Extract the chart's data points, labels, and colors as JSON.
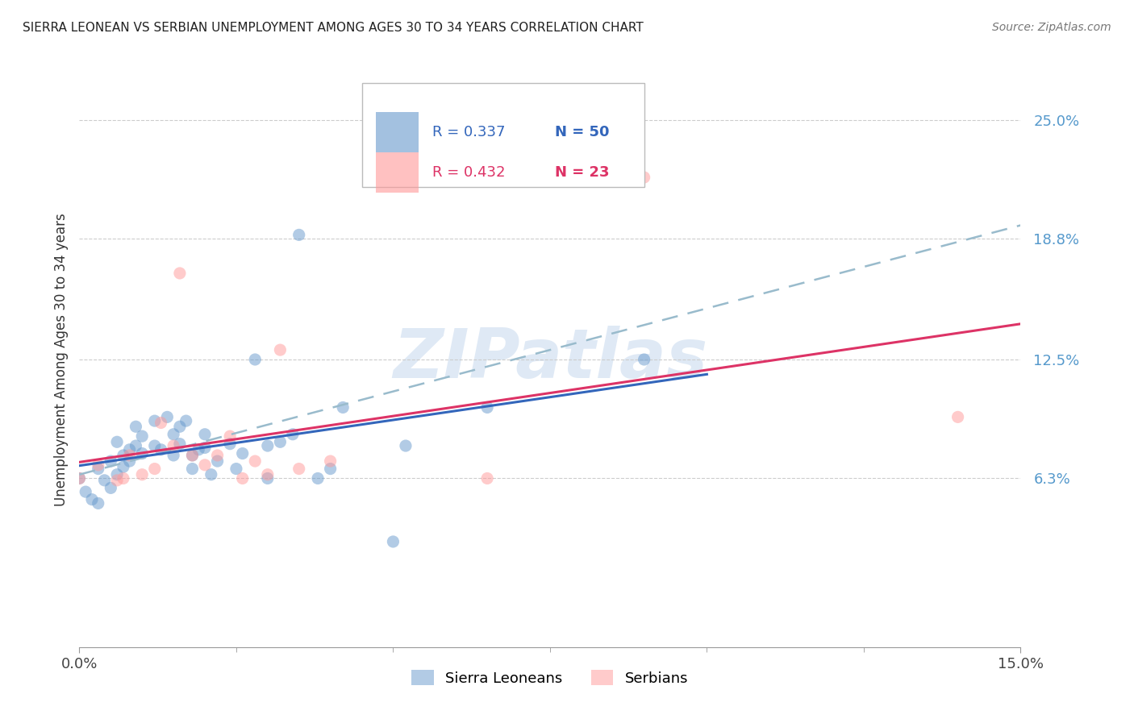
{
  "title": "SIERRA LEONEAN VS SERBIAN UNEMPLOYMENT AMONG AGES 30 TO 34 YEARS CORRELATION CHART",
  "source": "Source: ZipAtlas.com",
  "ylabel": "Unemployment Among Ages 30 to 34 years",
  "xlim": [
    0.0,
    0.15
  ],
  "ylim": [
    -0.025,
    0.275
  ],
  "yticks": [
    0.063,
    0.125,
    0.188,
    0.25
  ],
  "ytick_labels": [
    "6.3%",
    "12.5%",
    "18.8%",
    "25.0%"
  ],
  "grid_color": "#cccccc",
  "background_color": "#ffffff",
  "watermark": "ZIPatlas",
  "sl_color": "#6699cc",
  "sr_color": "#ff9999",
  "sl_R": 0.337,
  "sl_N": 50,
  "sr_R": 0.432,
  "sr_N": 23,
  "sl_x": [
    0.0,
    0.001,
    0.002,
    0.003,
    0.003,
    0.004,
    0.005,
    0.005,
    0.006,
    0.006,
    0.007,
    0.007,
    0.008,
    0.008,
    0.009,
    0.009,
    0.01,
    0.01,
    0.012,
    0.012,
    0.013,
    0.014,
    0.015,
    0.015,
    0.016,
    0.016,
    0.017,
    0.018,
    0.018,
    0.019,
    0.02,
    0.02,
    0.021,
    0.022,
    0.024,
    0.025,
    0.026,
    0.028,
    0.03,
    0.03,
    0.032,
    0.034,
    0.035,
    0.038,
    0.04,
    0.042,
    0.05,
    0.052,
    0.065,
    0.09
  ],
  "sl_y": [
    0.063,
    0.056,
    0.052,
    0.05,
    0.068,
    0.062,
    0.058,
    0.072,
    0.082,
    0.065,
    0.075,
    0.069,
    0.078,
    0.072,
    0.08,
    0.09,
    0.076,
    0.085,
    0.08,
    0.093,
    0.078,
    0.095,
    0.075,
    0.086,
    0.081,
    0.09,
    0.093,
    0.068,
    0.075,
    0.078,
    0.079,
    0.086,
    0.065,
    0.072,
    0.081,
    0.068,
    0.076,
    0.125,
    0.08,
    0.063,
    0.082,
    0.086,
    0.19,
    0.063,
    0.068,
    0.1,
    0.03,
    0.08,
    0.1,
    0.125
  ],
  "sr_x": [
    0.0,
    0.003,
    0.006,
    0.007,
    0.008,
    0.01,
    0.012,
    0.013,
    0.015,
    0.016,
    0.018,
    0.02,
    0.022,
    0.024,
    0.026,
    0.028,
    0.03,
    0.032,
    0.035,
    0.04,
    0.065,
    0.09,
    0.14
  ],
  "sr_y": [
    0.063,
    0.07,
    0.062,
    0.063,
    0.075,
    0.065,
    0.068,
    0.092,
    0.08,
    0.17,
    0.075,
    0.07,
    0.075,
    0.085,
    0.063,
    0.072,
    0.065,
    0.13,
    0.068,
    0.072,
    0.063,
    0.22,
    0.095
  ]
}
